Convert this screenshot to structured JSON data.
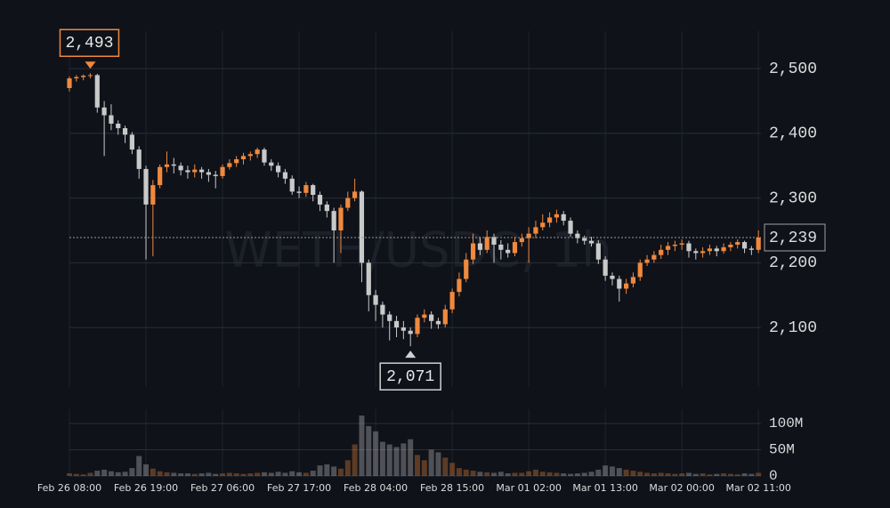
{
  "chart_data": {
    "type": "candlestick",
    "watermark": "WETH/USDC, 1h",
    "up_color": "#f0893d",
    "down_color": "#c9c9c9",
    "grid": true,
    "categories": [
      "Feb 26 08:00",
      null,
      null,
      null,
      null,
      null,
      null,
      null,
      null,
      null,
      null,
      "Feb 26 19:00",
      null,
      null,
      null,
      null,
      null,
      null,
      null,
      null,
      null,
      null,
      "Feb 27 06:00",
      null,
      null,
      null,
      null,
      null,
      null,
      null,
      null,
      null,
      null,
      "Feb 27 17:00",
      null,
      null,
      null,
      null,
      null,
      null,
      null,
      null,
      null,
      null,
      "Feb 28 04:00",
      null,
      null,
      null,
      null,
      null,
      null,
      null,
      null,
      null,
      null,
      "Feb 28 15:00",
      null,
      null,
      null,
      null,
      null,
      null,
      null,
      null,
      null,
      null,
      "Mar 01 02:00",
      null,
      null,
      null,
      null,
      null,
      null,
      null,
      null,
      null,
      null,
      "Mar 01 13:00",
      null,
      null,
      null,
      null,
      null,
      null,
      null,
      null,
      null,
      null,
      "Mar 02 00:00",
      null,
      null,
      null,
      null,
      null,
      null,
      null,
      null,
      null,
      null,
      "Mar 02 11:00"
    ],
    "open": [
      2470,
      2485,
      2487,
      2489,
      2490,
      2440,
      2428,
      2415,
      2408,
      2398,
      2375,
      2345,
      2290,
      2320,
      2348,
      2352,
      2350,
      2343,
      2340,
      2344,
      2340,
      2336,
      2334,
      2348,
      2354,
      2360,
      2365,
      2368,
      2375,
      2355,
      2350,
      2340,
      2330,
      2310,
      2308,
      2320,
      2305,
      2290,
      2280,
      2250,
      2285,
      2300,
      2310,
      2200,
      2150,
      2135,
      2120,
      2110,
      2100,
      2095,
      2090,
      2115,
      2120,
      2110,
      2105,
      2128,
      2155,
      2175,
      2205,
      2230,
      2220,
      2240,
      2228,
      2220,
      2215,
      2232,
      2238,
      2245,
      2255,
      2262,
      2270,
      2275,
      2265,
      2245,
      2238,
      2234,
      2230,
      2205,
      2180,
      2175,
      2160,
      2168,
      2178,
      2200,
      2205,
      2212,
      2220,
      2226,
      2228,
      2230,
      2218,
      2215,
      2218,
      2222,
      2218,
      2224,
      2228,
      2232,
      2222,
      2220
    ],
    "high": [
      2488,
      2490,
      2491,
      2493,
      2492,
      2450,
      2445,
      2420,
      2412,
      2402,
      2380,
      2350,
      2328,
      2352,
      2372,
      2362,
      2355,
      2350,
      2352,
      2348,
      2345,
      2342,
      2352,
      2360,
      2365,
      2370,
      2372,
      2378,
      2378,
      2360,
      2355,
      2345,
      2335,
      2318,
      2325,
      2322,
      2310,
      2295,
      2285,
      2290,
      2310,
      2330,
      2312,
      2205,
      2158,
      2140,
      2125,
      2118,
      2110,
      2100,
      2120,
      2128,
      2125,
      2115,
      2135,
      2160,
      2185,
      2215,
      2245,
      2240,
      2250,
      2245,
      2235,
      2230,
      2240,
      2245,
      2255,
      2265,
      2275,
      2278,
      2282,
      2280,
      2270,
      2250,
      2242,
      2240,
      2235,
      2210,
      2185,
      2180,
      2175,
      2185,
      2205,
      2212,
      2218,
      2228,
      2232,
      2234,
      2236,
      2234,
      2222,
      2224,
      2228,
      2226,
      2230,
      2232,
      2236,
      2234,
      2226,
      2250
    ],
    "low": [
      2465,
      2480,
      2482,
      2485,
      2432,
      2365,
      2405,
      2398,
      2385,
      2368,
      2330,
      2205,
      2210,
      2315,
      2340,
      2338,
      2335,
      2330,
      2332,
      2330,
      2325,
      2315,
      2330,
      2344,
      2348,
      2352,
      2358,
      2362,
      2350,
      2342,
      2332,
      2322,
      2305,
      2300,
      2302,
      2295,
      2280,
      2270,
      2200,
      2215,
      2280,
      2295,
      2170,
      2125,
      2110,
      2100,
      2080,
      2085,
      2082,
      2071,
      2085,
      2108,
      2098,
      2098,
      2100,
      2122,
      2148,
      2170,
      2198,
      2212,
      2215,
      2200,
      2205,
      2208,
      2210,
      2225,
      2200,
      2238,
      2250,
      2255,
      2262,
      2258,
      2240,
      2230,
      2228,
      2225,
      2198,
      2172,
      2165,
      2140,
      2152,
      2162,
      2172,
      2195,
      2200,
      2206,
      2212,
      2218,
      2220,
      2208,
      2205,
      2208,
      2212,
      2210,
      2214,
      2218,
      2222,
      2215,
      2212,
      2215
    ],
    "close": [
      2485,
      2487,
      2489,
      2490,
      2440,
      2428,
      2415,
      2408,
      2398,
      2375,
      2345,
      2290,
      2320,
      2348,
      2352,
      2350,
      2343,
      2340,
      2344,
      2340,
      2336,
      2334,
      2348,
      2354,
      2360,
      2365,
      2368,
      2375,
      2355,
      2350,
      2340,
      2330,
      2310,
      2308,
      2320,
      2305,
      2290,
      2280,
      2250,
      2285,
      2300,
      2310,
      2200,
      2150,
      2135,
      2120,
      2110,
      2100,
      2095,
      2090,
      2115,
      2120,
      2110,
      2105,
      2128,
      2155,
      2175,
      2205,
      2230,
      2220,
      2240,
      2228,
      2220,
      2215,
      2232,
      2238,
      2245,
      2255,
      2262,
      2270,
      2275,
      2265,
      2245,
      2238,
      2234,
      2230,
      2205,
      2180,
      2175,
      2160,
      2168,
      2178,
      2200,
      2205,
      2212,
      2220,
      2226,
      2228,
      2230,
      2218,
      2215,
      2218,
      2222,
      2218,
      2224,
      2228,
      2232,
      2222,
      2220,
      2239
    ],
    "volume": [
      5000000,
      4000000,
      3000000,
      6000000,
      10000000,
      12000000,
      9000000,
      7000000,
      8000000,
      15000000,
      38000000,
      22000000,
      14000000,
      9000000,
      7000000,
      6000000,
      5000000,
      5000000,
      4000000,
      5000000,
      6000000,
      4000000,
      5000000,
      6000000,
      5000000,
      4000000,
      5000000,
      6000000,
      7000000,
      6000000,
      8000000,
      6000000,
      9000000,
      7000000,
      6000000,
      10000000,
      20000000,
      22000000,
      18000000,
      14000000,
      30000000,
      60000000,
      115000000,
      95000000,
      85000000,
      65000000,
      60000000,
      55000000,
      62000000,
      70000000,
      40000000,
      30000000,
      50000000,
      45000000,
      35000000,
      25000000,
      15000000,
      12000000,
      10000000,
      8000000,
      7000000,
      6000000,
      8000000,
      5000000,
      6000000,
      6000000,
      9000000,
      12000000,
      8000000,
      7000000,
      6000000,
      5000000,
      4000000,
      5000000,
      6000000,
      8000000,
      12000000,
      20000000,
      18000000,
      15000000,
      12000000,
      10000000,
      8000000,
      6000000,
      5000000,
      6000000,
      5000000,
      4000000,
      5000000,
      6000000,
      4000000,
      5000000,
      3000000,
      4000000,
      5000000,
      4000000,
      3000000,
      5000000,
      4000000,
      6000000
    ],
    "ylim": [
      2008,
      2558
    ],
    "yticks": [
      {
        "value": 2100,
        "label": "2,100"
      },
      {
        "value": 2200,
        "label": "2,200"
      },
      {
        "value": 2300,
        "label": "2,300"
      },
      {
        "value": 2400,
        "label": "2,400"
      },
      {
        "value": 2500,
        "label": "2,500"
      }
    ],
    "volume_ylim": [
      0,
      127000000
    ],
    "volume_yticks": [
      0,
      {
        "value": 50000000,
        "label": "50M"
      },
      {
        "value": 100000000,
        "label": "100M"
      }
    ],
    "high_marker": {
      "value": 2493,
      "label": "2,493"
    },
    "low_marker": {
      "value": 2071,
      "label": "2,071"
    },
    "last_price": {
      "value": 2239,
      "label": "2,239"
    }
  }
}
